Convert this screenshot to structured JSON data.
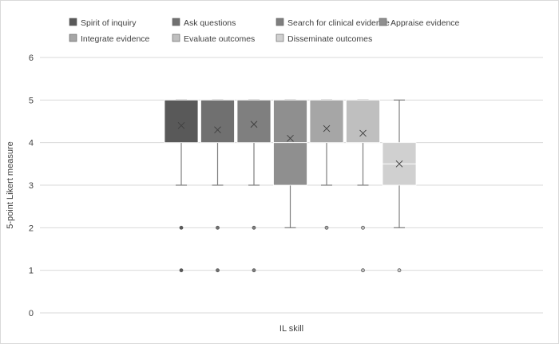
{
  "chart_data": {
    "type": "box",
    "xlabel": "IL skill",
    "ylabel": "5-point Likert measure",
    "ylim": [
      0,
      6
    ],
    "yticks": [
      0,
      1,
      2,
      3,
      4,
      5,
      6
    ],
    "grid": true,
    "legend_position": "top",
    "series": [
      {
        "name": "Spirit of inquiry",
        "color": "#595959",
        "q1": 4,
        "median": 5,
        "q3": 5,
        "whisker_low": 3,
        "whisker_high": 5,
        "mean": 4.4,
        "outliers": [
          2,
          1
        ]
      },
      {
        "name": "Ask questions",
        "color": "#707070",
        "q1": 4,
        "median": 5,
        "q3": 5,
        "whisker_low": 3,
        "whisker_high": 5,
        "mean": 4.3,
        "outliers": [
          2,
          1
        ]
      },
      {
        "name": "Search for clinical evidence",
        "color": "#7f7f7f",
        "q1": 4,
        "median": 5,
        "q3": 5,
        "whisker_low": 3,
        "whisker_high": 5,
        "mean": 4.43,
        "outliers": [
          2,
          1
        ]
      },
      {
        "name": "Appraise evidence",
        "color": "#8f8f8f",
        "q1": 3,
        "median": 4,
        "q3": 5,
        "whisker_low": 2,
        "whisker_high": 5,
        "mean": 4.1,
        "outliers": []
      },
      {
        "name": "Integrate evidence",
        "color": "#a6a6a6",
        "q1": 4,
        "median": 5,
        "q3": 5,
        "whisker_low": 3,
        "whisker_high": 5,
        "mean": 4.33,
        "outliers": [
          2
        ]
      },
      {
        "name": "Evaluate outcomes",
        "color": "#bfbfbf",
        "q1": 4,
        "median": 5,
        "q3": 5,
        "whisker_low": 3,
        "whisker_high": 5,
        "mean": 4.22,
        "outliers": [
          2,
          1
        ]
      },
      {
        "name": "Disseminate outcomes",
        "color": "#d0d0d0",
        "q1": 3,
        "median": 3.5,
        "q3": 4,
        "whisker_low": 2,
        "whisker_high": 5,
        "mean": 3.5,
        "outliers": [
          1
        ]
      }
    ]
  }
}
